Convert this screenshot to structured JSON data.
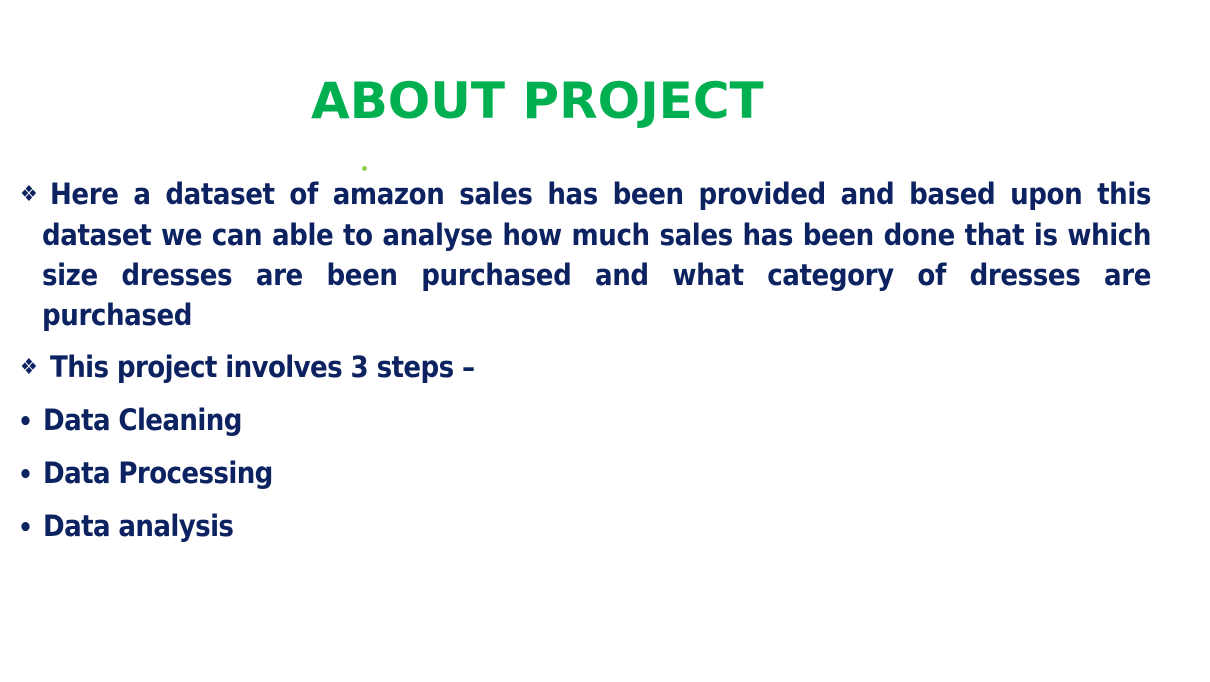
{
  "slide": {
    "title": "ABOUT PROJECT",
    "colors": {
      "title": "#00b050",
      "body": "#0d2260",
      "accent_dot": "#92d050"
    },
    "description": {
      "bullet_icon": "diamond-bullet-icon",
      "bullet_glyph": "❖",
      "lines": [
        "Here a dataset of amazon sales  has been provided  and based upon this",
        "dataset we can able to analyse how much sales has been done that is which",
        "size dresses are been purchased and what category of dresses are",
        "purchased"
      ]
    },
    "steps_intro": {
      "bullet_icon": "diamond-bullet-icon",
      "bullet_glyph": "❖",
      "text": "This project involves 3 steps –"
    },
    "steps": [
      {
        "bullet": "•",
        "label": "Data Cleaning"
      },
      {
        "bullet": "•",
        "label": "Data Processing"
      },
      {
        "bullet": "•",
        "label": "Data analysis"
      }
    ]
  }
}
